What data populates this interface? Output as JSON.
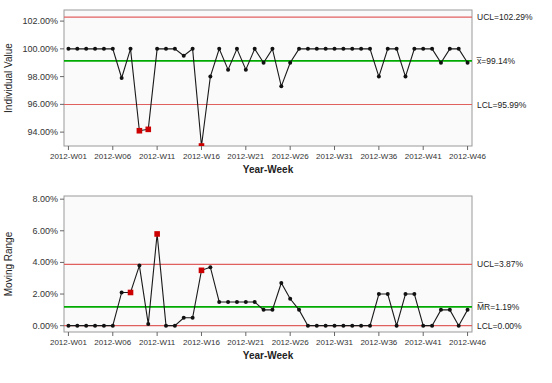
{
  "chart_data": [
    {
      "type": "line",
      "xlabel": "Year-Week",
      "ylabel": "Individual Value",
      "grid": false,
      "categories": [
        "2012-W01",
        null,
        null,
        null,
        null,
        "2012-W06",
        null,
        null,
        null,
        null,
        "2012-W11",
        null,
        null,
        null,
        null,
        "2012-W16",
        null,
        null,
        null,
        null,
        "2012-W21",
        null,
        null,
        null,
        null,
        "2012-W26",
        null,
        null,
        null,
        null,
        "2012-W31",
        null,
        null,
        null,
        null,
        "2012-W36",
        null,
        null,
        null,
        null,
        "2012-W41",
        null,
        null,
        null,
        null,
        "2012-W46"
      ],
      "series": [
        {
          "type": "line",
          "color": "#1a1a1a",
          "values": [
            100.0,
            100.0,
            100.0,
            100.0,
            100.0,
            100.0,
            97.9,
            100.0,
            94.1,
            94.2,
            100.0,
            100.0,
            100.0,
            99.5,
            100.0,
            93.0,
            98.0,
            100.0,
            98.5,
            100.0,
            98.5,
            100.0,
            99.0,
            100.0,
            97.3,
            99.0,
            100.0,
            100.0,
            100.0,
            100.0,
            100.0,
            100.0,
            100.0,
            100.0,
            100.0,
            98.0,
            100.0,
            100.0,
            98.0,
            100.0,
            100.0,
            100.0,
            99.0,
            100.0,
            100.0,
            99.0
          ]
        },
        {
          "type": "scatter",
          "marker": "circle",
          "color": "#111111",
          "values": [
            100.0,
            100.0,
            100.0,
            100.0,
            100.0,
            100.0,
            97.9,
            100.0,
            null,
            null,
            100.0,
            100.0,
            100.0,
            99.5,
            100.0,
            null,
            98.0,
            100.0,
            98.5,
            100.0,
            98.5,
            100.0,
            99.0,
            100.0,
            97.3,
            99.0,
            100.0,
            100.0,
            100.0,
            100.0,
            100.0,
            100.0,
            100.0,
            100.0,
            100.0,
            98.0,
            100.0,
            100.0,
            98.0,
            100.0,
            100.0,
            100.0,
            99.0,
            100.0,
            100.0,
            99.0
          ]
        },
        {
          "type": "scatter",
          "marker": "square",
          "color": "#cc0000",
          "values": [
            null,
            null,
            null,
            null,
            null,
            null,
            null,
            null,
            94.1,
            94.2,
            null,
            null,
            null,
            null,
            null,
            93.0,
            null,
            null,
            null,
            null,
            null,
            null,
            null,
            null,
            null,
            null,
            null,
            null,
            null,
            null,
            null,
            null,
            null,
            null,
            null,
            null,
            null,
            null,
            null,
            null,
            null,
            null,
            null,
            null,
            null,
            null
          ]
        }
      ],
      "reference_lines": [
        {
          "value": 102.29,
          "label": "UCL=102.29%",
          "color": "#e06060"
        },
        {
          "value": 99.14,
          "label": "x̅=99.14%",
          "color": "#00aa00"
        },
        {
          "value": 95.99,
          "label": "LCL=95.99%",
          "color": "#e06060"
        }
      ],
      "ylim": [
        93.0,
        102.8
      ],
      "yticks": [
        {
          "value": 94.0,
          "label": "94.00%"
        },
        {
          "value": 96.0,
          "label": "96.00%"
        },
        {
          "value": 98.0,
          "label": "98.00%"
        },
        {
          "value": 100.0,
          "label": "100.00%"
        },
        {
          "value": 102.0,
          "label": "102.00%"
        }
      ]
    },
    {
      "type": "line",
      "xlabel": "Year-Week",
      "ylabel": "Moving Range",
      "grid": false,
      "categories": [
        "2012-W01",
        null,
        null,
        null,
        null,
        "2012-W06",
        null,
        null,
        null,
        null,
        "2012-W11",
        null,
        null,
        null,
        null,
        "2012-W16",
        null,
        null,
        null,
        null,
        "2012-W21",
        null,
        null,
        null,
        null,
        "2012-W26",
        null,
        null,
        null,
        null,
        "2012-W31",
        null,
        null,
        null,
        null,
        "2012-W36",
        null,
        null,
        null,
        null,
        "2012-W41",
        null,
        null,
        null,
        null,
        "2012-W46"
      ],
      "series": [
        {
          "type": "line",
          "color": "#1a1a1a",
          "values": [
            0.0,
            0.0,
            0.0,
            0.0,
            0.0,
            0.0,
            2.1,
            2.1,
            3.8,
            0.1,
            5.8,
            0.0,
            0.0,
            0.5,
            0.5,
            3.5,
            3.7,
            1.5,
            1.5,
            1.5,
            1.5,
            1.5,
            1.0,
            1.0,
            2.7,
            1.7,
            1.0,
            0.0,
            0.0,
            0.0,
            0.0,
            0.0,
            0.0,
            0.0,
            0.0,
            2.0,
            2.0,
            0.0,
            2.0,
            2.0,
            0.0,
            0.0,
            1.0,
            1.0,
            0.0,
            1.0
          ]
        },
        {
          "type": "scatter",
          "marker": "circle",
          "color": "#111111",
          "values": [
            0.0,
            0.0,
            0.0,
            0.0,
            0.0,
            0.0,
            2.1,
            null,
            3.8,
            0.1,
            null,
            0.0,
            0.0,
            0.5,
            0.5,
            null,
            3.7,
            1.5,
            1.5,
            1.5,
            1.5,
            1.5,
            1.0,
            1.0,
            2.7,
            1.7,
            1.0,
            0.0,
            0.0,
            0.0,
            0.0,
            0.0,
            0.0,
            0.0,
            0.0,
            2.0,
            2.0,
            0.0,
            2.0,
            2.0,
            0.0,
            0.0,
            1.0,
            1.0,
            0.0,
            1.0
          ]
        },
        {
          "type": "scatter",
          "marker": "square",
          "color": "#cc0000",
          "values": [
            null,
            null,
            null,
            null,
            null,
            null,
            null,
            2.1,
            null,
            null,
            5.8,
            null,
            null,
            null,
            null,
            3.5,
            null,
            null,
            null,
            null,
            null,
            null,
            null,
            null,
            null,
            null,
            null,
            null,
            null,
            null,
            null,
            null,
            null,
            null,
            null,
            null,
            null,
            null,
            null,
            null,
            null,
            null,
            null,
            null,
            null,
            null
          ]
        }
      ],
      "reference_lines": [
        {
          "value": 3.87,
          "label": "UCL=3.87%",
          "color": "#e06060"
        },
        {
          "value": 1.19,
          "label": "M̅R=1.19%",
          "color": "#00aa00"
        },
        {
          "value": 0.0,
          "label": "LCL=0.00%",
          "color": "#e06060"
        }
      ],
      "ylim": [
        -0.4,
        8.2
      ],
      "yticks": [
        {
          "value": 0.0,
          "label": "0.00%"
        },
        {
          "value": 2.0,
          "label": "2.00%"
        },
        {
          "value": 4.0,
          "label": "4.00%"
        },
        {
          "value": 6.0,
          "label": "6.00%"
        },
        {
          "value": 8.0,
          "label": "8.00%"
        }
      ]
    }
  ]
}
